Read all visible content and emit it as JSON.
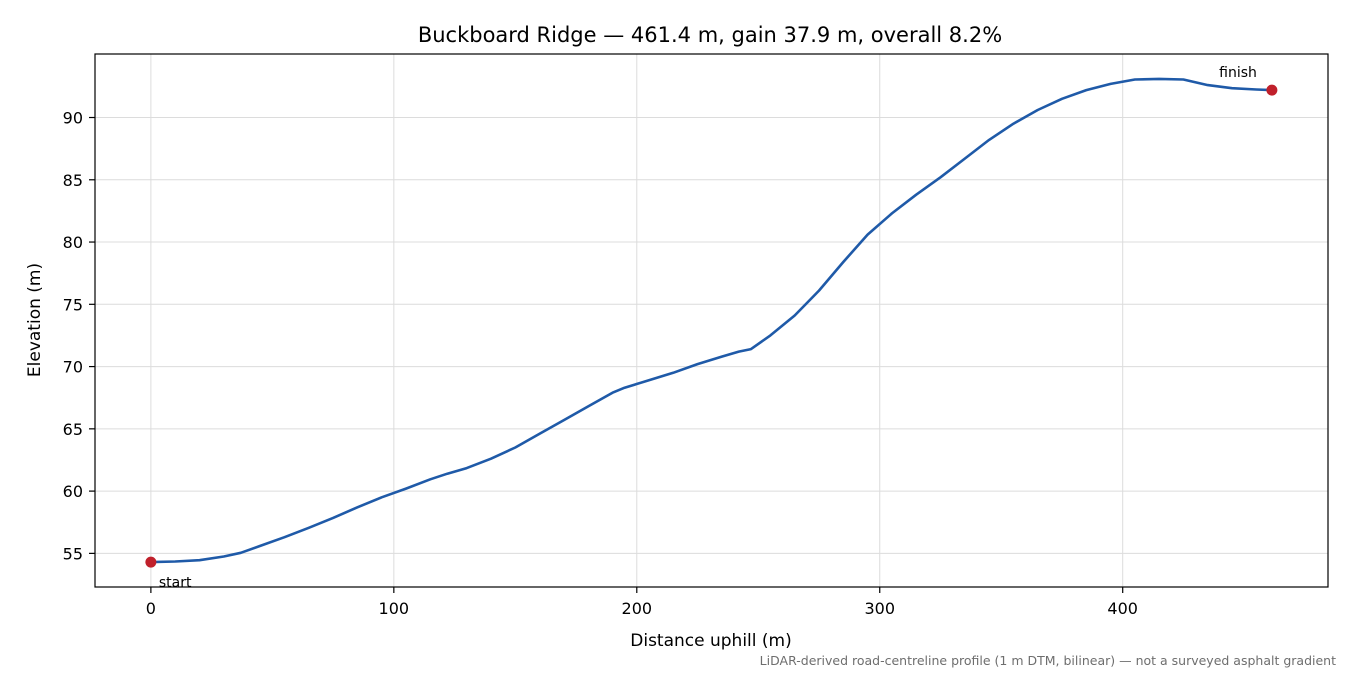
{
  "chart_data": {
    "type": "line",
    "title": "Buckboard Ridge — 461.4 m, gain 37.9 m, overall 8.2%",
    "xlabel": "Distance uphill (m)",
    "ylabel": "Elevation (m)",
    "xlim": [
      -23,
      484.5
    ],
    "ylim": [
      52.3,
      95.1
    ],
    "x_ticks": [
      0,
      100,
      200,
      300,
      400
    ],
    "y_ticks": [
      55,
      60,
      65,
      70,
      75,
      80,
      85,
      90
    ],
    "grid": true,
    "series": [
      {
        "color": "#1f5aa8",
        "points": [
          [
            0,
            54.3
          ],
          [
            10,
            54.35
          ],
          [
            20,
            54.45
          ],
          [
            30,
            54.75
          ],
          [
            37,
            55.05
          ],
          [
            45,
            55.6
          ],
          [
            55,
            56.3
          ],
          [
            65,
            57.05
          ],
          [
            75,
            57.85
          ],
          [
            85,
            58.7
          ],
          [
            95,
            59.5
          ],
          [
            105,
            60.2
          ],
          [
            115,
            60.95
          ],
          [
            122,
            61.4
          ],
          [
            130,
            61.85
          ],
          [
            140,
            62.6
          ],
          [
            150,
            63.5
          ],
          [
            160,
            64.6
          ],
          [
            170,
            65.7
          ],
          [
            180,
            66.8
          ],
          [
            190,
            67.9
          ],
          [
            195,
            68.3
          ],
          [
            205,
            68.9
          ],
          [
            215,
            69.5
          ],
          [
            225,
            70.2
          ],
          [
            235,
            70.8
          ],
          [
            242,
            71.2
          ],
          [
            247,
            71.4
          ],
          [
            255,
            72.5
          ],
          [
            265,
            74.1
          ],
          [
            275,
            76.1
          ],
          [
            285,
            78.4
          ],
          [
            295,
            80.6
          ],
          [
            305,
            82.3
          ],
          [
            315,
            83.8
          ],
          [
            325,
            85.2
          ],
          [
            335,
            86.7
          ],
          [
            345,
            88.2
          ],
          [
            355,
            89.5
          ],
          [
            365,
            90.6
          ],
          [
            375,
            91.5
          ],
          [
            385,
            92.2
          ],
          [
            395,
            92.7
          ],
          [
            405,
            93.05
          ],
          [
            415,
            93.1
          ],
          [
            425,
            93.05
          ],
          [
            435,
            92.6
          ],
          [
            445,
            92.35
          ],
          [
            455,
            92.25
          ],
          [
            461.4,
            92.2
          ]
        ]
      }
    ],
    "markers": [
      {
        "label": "start",
        "x": 0,
        "y": 54.3,
        "color": "#c0202b"
      },
      {
        "label": "finish",
        "x": 461.4,
        "y": 92.2,
        "color": "#c0202b"
      }
    ],
    "footnote": "LiDAR-derived road-centreline profile (1 m DTM, bilinear) — not a surveyed asphalt gradient"
  }
}
